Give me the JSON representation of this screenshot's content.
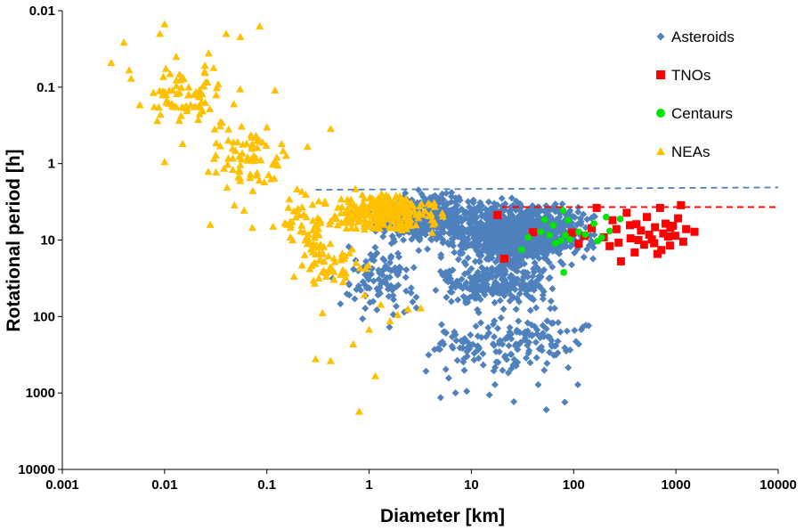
{
  "chart_data": {
    "type": "scatter",
    "xlabel": "Diameter [km]",
    "ylabel": "Rotational period [h]",
    "x_scale": "log",
    "y_scale": "log",
    "y_inverted": true,
    "xlim": [
      0.001,
      10000
    ],
    "ylim": [
      0.01,
      10000
    ],
    "x_ticks": [
      "0.001",
      "0.01",
      "0.1",
      "1",
      "10",
      "100",
      "1000",
      "10000"
    ],
    "y_ticks": [
      "0.01",
      "0.1",
      "1",
      "10",
      "100",
      "1000",
      "10000"
    ],
    "grid": false,
    "legend_position": "top-right",
    "series": [
      {
        "name": "Asteroids",
        "marker": "diamond",
        "color": "#4F81BD",
        "clusters": [
          {
            "x_range": [
              0.9,
              12
            ],
            "y_range": [
              2.2,
              12
            ],
            "count": 450
          },
          {
            "x_range": [
              4,
              200
            ],
            "y_range": [
              2.5,
              25
            ],
            "count": 1100
          },
          {
            "x_range": [
              3,
              110
            ],
            "y_range": [
              15,
              90
            ],
            "count": 260
          },
          {
            "x_range": [
              2,
              250
            ],
            "y_range": [
              60,
              900
            ],
            "count": 170
          },
          {
            "x_range": [
              0.4,
              4
            ],
            "y_range": [
              8,
              150
            ],
            "count": 110
          }
        ],
        "points": [
          {
            "x": 5,
            "y": 1150
          },
          {
            "x": 54,
            "y": 1660
          },
          {
            "x": 82,
            "y": 1320
          },
          {
            "x": 26,
            "y": 1300
          },
          {
            "x": 15,
            "y": 1060
          },
          {
            "x": 7,
            "y": 1000
          },
          {
            "x": 9,
            "y": 950
          },
          {
            "x": 17,
            "y": 780
          },
          {
            "x": 3.6,
            "y": 520
          },
          {
            "x": 45,
            "y": 780
          },
          {
            "x": 110,
            "y": 780
          },
          {
            "x": 6,
            "y": 640
          }
        ]
      },
      {
        "name": "TNOs",
        "marker": "square",
        "color": "#FF0000",
        "points": [
          {
            "x": 18,
            "y": 4.7
          },
          {
            "x": 21,
            "y": 17.5
          },
          {
            "x": 40,
            "y": 7.9
          },
          {
            "x": 168,
            "y": 3.8
          },
          {
            "x": 197,
            "y": 9.2
          },
          {
            "x": 225,
            "y": 12
          },
          {
            "x": 240,
            "y": 5.5
          },
          {
            "x": 262,
            "y": 7.2
          },
          {
            "x": 290,
            "y": 19
          },
          {
            "x": 330,
            "y": 4.4
          },
          {
            "x": 360,
            "y": 9.5
          },
          {
            "x": 395,
            "y": 14.5
          },
          {
            "x": 410,
            "y": 6.2
          },
          {
            "x": 455,
            "y": 7.5
          },
          {
            "x": 488,
            "y": 11.5
          },
          {
            "x": 520,
            "y": 5.0
          },
          {
            "x": 548,
            "y": 8.5
          },
          {
            "x": 582,
            "y": 9.8
          },
          {
            "x": 625,
            "y": 6.8
          },
          {
            "x": 660,
            "y": 15.2
          },
          {
            "x": 700,
            "y": 3.8
          },
          {
            "x": 720,
            "y": 13.5
          },
          {
            "x": 752,
            "y": 8.2
          },
          {
            "x": 792,
            "y": 6.1
          },
          {
            "x": 838,
            "y": 9.0
          },
          {
            "x": 875,
            "y": 11.8
          },
          {
            "x": 935,
            "y": 6.5
          },
          {
            "x": 985,
            "y": 8.8
          },
          {
            "x": 1050,
            "y": 5.2
          },
          {
            "x": 1120,
            "y": 3.5
          },
          {
            "x": 1180,
            "y": 10.5
          },
          {
            "x": 1260,
            "y": 7.2
          },
          {
            "x": 1520,
            "y": 7.8
          },
          {
            "x": 128,
            "y": 8.8
          },
          {
            "x": 150,
            "y": 7.0
          },
          {
            "x": 112,
            "y": 11.2
          },
          {
            "x": 96,
            "y": 8.0
          },
          {
            "x": 275,
            "y": 10.8
          },
          {
            "x": 430,
            "y": 10.0
          },
          {
            "x": 612,
            "y": 11.0
          },
          {
            "x": 882,
            "y": 6.9
          },
          {
            "x": 355,
            "y": 6.4
          }
        ]
      },
      {
        "name": "Centaurs",
        "marker": "circle",
        "color": "#00E600",
        "points": [
          {
            "x": 31,
            "y": 13.3
          },
          {
            "x": 36,
            "y": 9.2
          },
          {
            "x": 48,
            "y": 7.8
          },
          {
            "x": 52,
            "y": 5.4
          },
          {
            "x": 58,
            "y": 8.6
          },
          {
            "x": 63,
            "y": 6.4
          },
          {
            "x": 66,
            "y": 11
          },
          {
            "x": 75,
            "y": 10.2
          },
          {
            "x": 79,
            "y": 4.1
          },
          {
            "x": 80,
            "y": 26.5
          },
          {
            "x": 83,
            "y": 8.6
          },
          {
            "x": 88,
            "y": 5.5
          },
          {
            "x": 92,
            "y": 9.8
          },
          {
            "x": 112,
            "y": 7.8
          },
          {
            "x": 158,
            "y": 6.1
          },
          {
            "x": 172,
            "y": 10.3
          },
          {
            "x": 188,
            "y": 9.2
          },
          {
            "x": 208,
            "y": 5.0
          },
          {
            "x": 225,
            "y": 7.6
          },
          {
            "x": 285,
            "y": 5.3
          },
          {
            "x": 130,
            "y": 8.5
          }
        ]
      },
      {
        "name": "NEAs",
        "marker": "triangle",
        "color": "#FFC000",
        "clusters": [
          {
            "x_range": [
              0.3,
              6
            ],
            "y_range": [
              2.1,
              9
            ],
            "count": 260
          },
          {
            "x_range": [
              0.2,
              1.2
            ],
            "y_range": [
              8,
              60
            ],
            "count": 45
          },
          {
            "x_range": [
              0.004,
              0.08
            ],
            "y_range": [
              0.03,
              0.5
            ],
            "count": 80
          },
          {
            "x_range": [
              0.02,
              0.25
            ],
            "y_range": [
              0.2,
              3.5
            ],
            "count": 70
          },
          {
            "x_range": [
              0.1,
              0.6
            ],
            "y_range": [
              1.5,
              30
            ],
            "count": 60
          }
        ],
        "points": [
          {
            "x": 0.003,
            "y": 0.048
          },
          {
            "x": 0.004,
            "y": 0.026
          },
          {
            "x": 0.0045,
            "y": 0.06
          },
          {
            "x": 0.01,
            "y": 0.015
          },
          {
            "x": 0.009,
            "y": 0.02
          },
          {
            "x": 0.085,
            "y": 0.016
          },
          {
            "x": 0.055,
            "y": 0.022
          },
          {
            "x": 0.04,
            "y": 0.02
          },
          {
            "x": 0.013,
            "y": 0.04
          },
          {
            "x": 0.12,
            "y": 0.11
          },
          {
            "x": 0.01,
            "y": 0.95
          },
          {
            "x": 0.015,
            "y": 0.55
          },
          {
            "x": 0.42,
            "y": 0.35
          },
          {
            "x": 0.25,
            "y": 0.6
          },
          {
            "x": 0.8,
            "y": 1750
          },
          {
            "x": 1.15,
            "y": 600
          },
          {
            "x": 0.42,
            "y": 380
          },
          {
            "x": 0.3,
            "y": 360
          },
          {
            "x": 0.7,
            "y": 230
          },
          {
            "x": 0.35,
            "y": 90
          },
          {
            "x": 0.028,
            "y": 6.3
          },
          {
            "x": 0.06,
            "y": 4.1
          },
          {
            "x": 0.072,
            "y": 6.9
          },
          {
            "x": 0.15,
            "y": 6.0
          },
          {
            "x": 0.3,
            "y": 20.4
          },
          {
            "x": 1.0,
            "y": 148
          },
          {
            "x": 1.6,
            "y": 115
          },
          {
            "x": 1.9,
            "y": 95
          },
          {
            "x": 2.4,
            "y": 80
          },
          {
            "x": 3.2,
            "y": 78
          },
          {
            "x": 1.3,
            "y": 70
          },
          {
            "x": 0.9,
            "y": 52
          }
        ]
      }
    ],
    "annotations": [
      {
        "type": "dashed-line",
        "color": "#4F81BD",
        "from": {
          "x": 0.3,
          "y": 2.2
        },
        "to": {
          "x": 10000,
          "y": 2.05
        }
      },
      {
        "type": "dashed-line",
        "color": "#FF0000",
        "from": {
          "x": 20,
          "y": 3.7
        },
        "to": {
          "x": 10000,
          "y": 3.7
        }
      }
    ]
  }
}
